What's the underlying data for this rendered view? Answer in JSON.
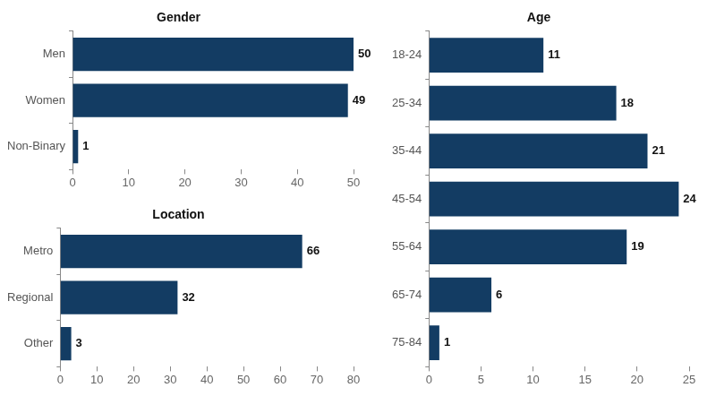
{
  "chart_data": [
    {
      "type": "bar",
      "title": "Gender",
      "orientation": "horizontal",
      "categories": [
        "Men",
        "Women",
        "Non-Binary"
      ],
      "values": [
        50,
        49,
        1
      ],
      "color": "#133c63",
      "xlim": [
        0,
        50
      ],
      "xticks": [
        0,
        10,
        20,
        30,
        40,
        50
      ],
      "grid": false,
      "data_labels": true
    },
    {
      "type": "bar",
      "title": "Location",
      "orientation": "horizontal",
      "categories": [
        "Metro",
        "Regional",
        "Other"
      ],
      "values": [
        66,
        32,
        3
      ],
      "color": "#133c63",
      "xlim": [
        0,
        80
      ],
      "xticks": [
        0,
        10,
        20,
        30,
        40,
        50,
        60,
        70,
        80
      ],
      "grid": false,
      "data_labels": true
    },
    {
      "type": "bar",
      "title": "Age",
      "orientation": "horizontal",
      "categories": [
        "18-24",
        "25-34",
        "35-44",
        "45-54",
        "55-64",
        "65-74",
        "75-84"
      ],
      "values": [
        11,
        18,
        21,
        24,
        19,
        6,
        1
      ],
      "color": "#133c63",
      "xlim": [
        0,
        25
      ],
      "xticks": [
        0,
        5,
        10,
        15,
        20,
        25
      ],
      "grid": false,
      "data_labels": true
    }
  ]
}
